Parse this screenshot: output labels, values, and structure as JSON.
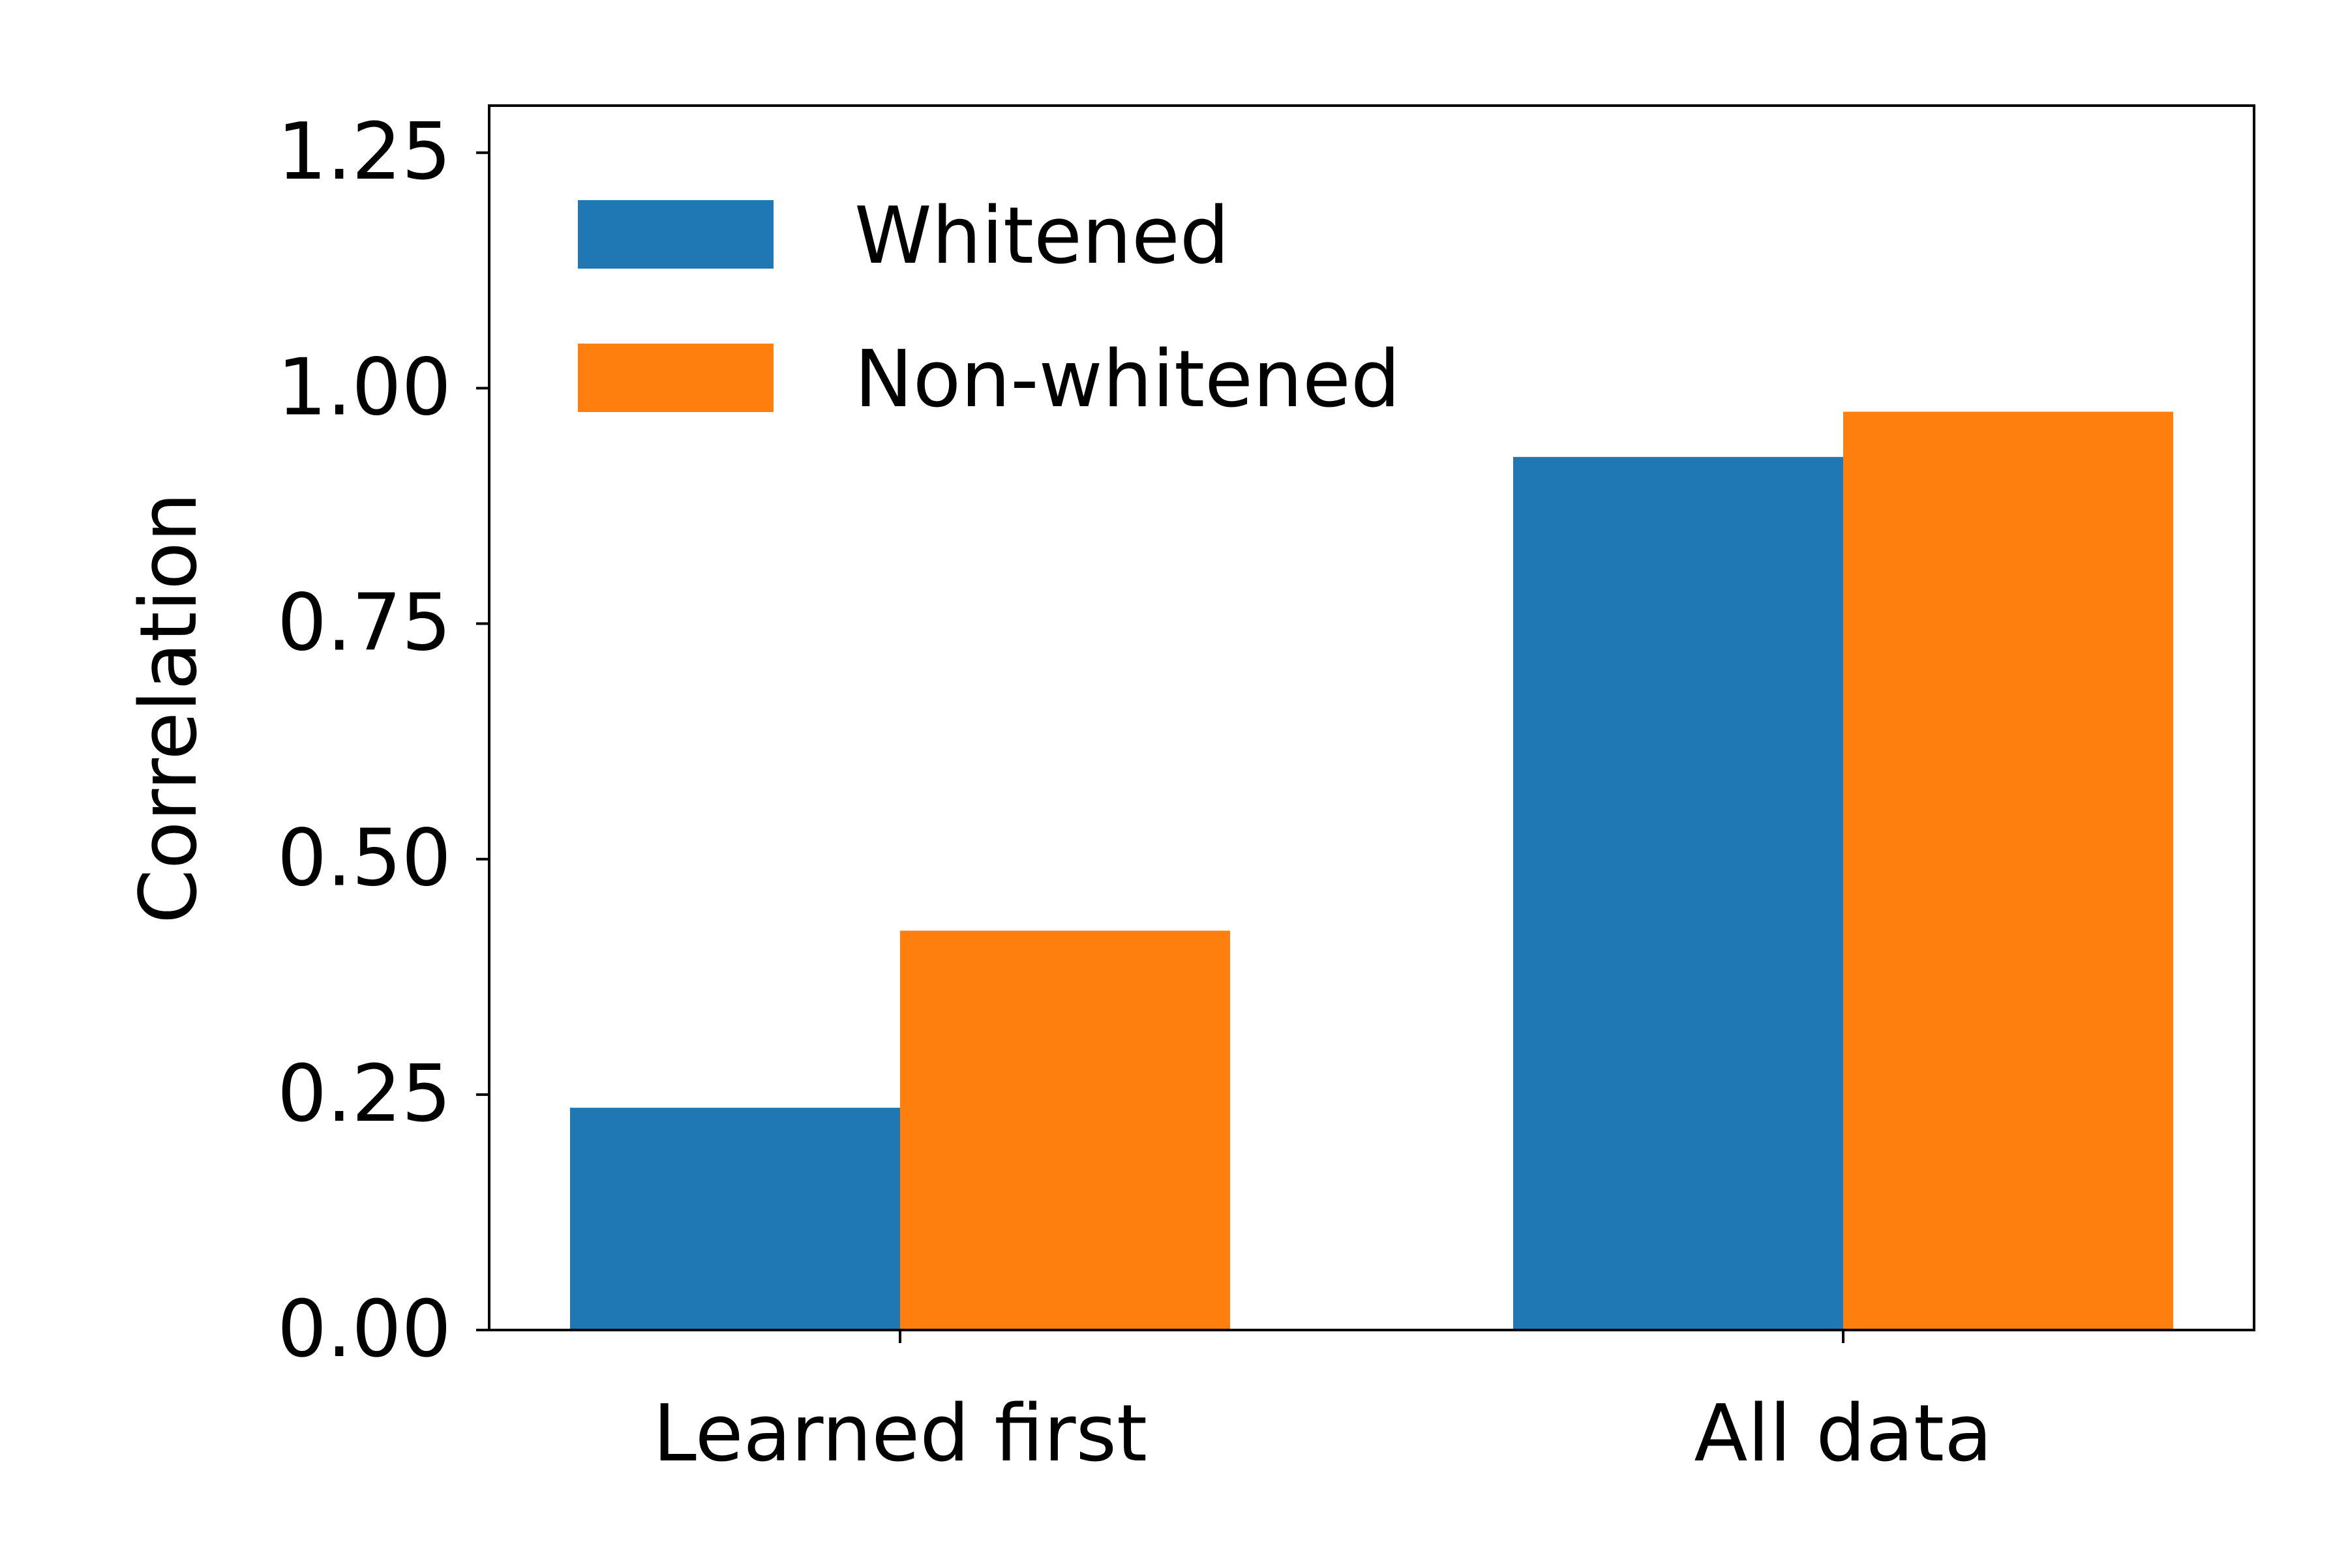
{
  "chart_data": {
    "type": "bar",
    "title": "",
    "xlabel": "",
    "ylabel": "Correlation",
    "categories": [
      "Learned first",
      "All data"
    ],
    "series": [
      {
        "name": "Whitened",
        "color": "#1f77b4",
        "values": [
          0.236,
          0.927
        ]
      },
      {
        "name": "Non-whitened",
        "color": "#ff7f0e",
        "values": [
          0.424,
          0.975
        ]
      }
    ],
    "ylim": [
      0,
      1.3
    ],
    "yticks": [
      "0.00",
      "0.25",
      "0.50",
      "0.75",
      "1.00",
      "1.25"
    ],
    "grid": false,
    "legend_position": "top-left"
  }
}
